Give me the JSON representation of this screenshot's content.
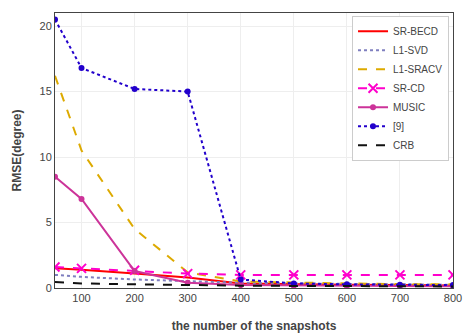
{
  "chart_data": {
    "type": "line",
    "x": [
      50,
      100,
      200,
      300,
      400,
      500,
      600,
      700,
      800
    ],
    "series": [
      {
        "name": "SR-BECD",
        "color": "#ff0000",
        "line_style": "solid",
        "values": [
          1.5,
          1.4,
          1.1,
          0.8,
          0.35,
          0.28,
          0.25,
          0.22,
          0.2
        ]
      },
      {
        "name": "L1-SVD",
        "color": "#7f7fbf",
        "line_style": "dotted",
        "values": [
          1.0,
          0.85,
          0.65,
          0.5,
          0.4,
          0.35,
          0.3,
          0.28,
          0.25
        ]
      },
      {
        "name": "L1-SRACV",
        "color": "#ddaa00",
        "line_style": "dashed",
        "values": [
          16.2,
          10.5,
          4.5,
          1.2,
          0.5,
          0.4,
          0.35,
          0.3,
          0.28
        ]
      },
      {
        "name": "SR-CD",
        "color": "#ff00cc",
        "line_style": "dashed",
        "marker": "x",
        "values": [
          1.6,
          1.5,
          1.35,
          1.1,
          1.0,
          1.0,
          1.0,
          1.0,
          1.0
        ]
      },
      {
        "name": "MUSIC",
        "color": "#cc3399",
        "line_style": "solid",
        "marker": "circle",
        "values": [
          8.5,
          6.8,
          1.3,
          0.4,
          0.22,
          0.18,
          0.16,
          0.15,
          0.14
        ]
      },
      {
        "name": "[9]",
        "color": "#2200cc",
        "line_style": "dotted",
        "marker": "circle",
        "values": [
          20.5,
          16.8,
          15.2,
          15.0,
          0.65,
          0.35,
          0.28,
          0.25,
          0.22
        ]
      },
      {
        "name": "CRB",
        "color": "#111111",
        "line_style": "dashed",
        "values": [
          0.45,
          0.35,
          0.28,
          0.22,
          0.18,
          0.16,
          0.14,
          0.13,
          0.12
        ]
      }
    ],
    "xlabel": "the number of the snapshots",
    "ylabel": "RMSE(degree)",
    "xlim": [
      50,
      800
    ],
    "ylim": [
      0,
      21
    ],
    "xticks": [
      100,
      200,
      300,
      400,
      500,
      600,
      700,
      800
    ],
    "yticks": [
      0,
      5,
      10,
      15,
      20
    ],
    "grid": true,
    "legend": "upper right"
  }
}
